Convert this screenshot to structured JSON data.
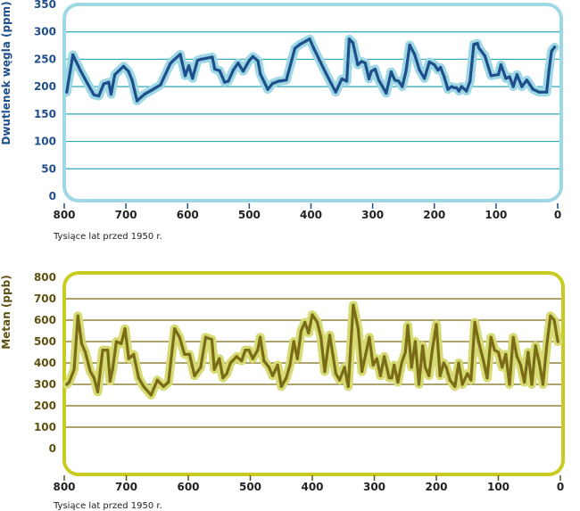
{
  "chart_data": [
    {
      "type": "line",
      "ylabel": "Dwutlenek węgla (ppm)",
      "xlabel": "Tysiące lat przed 1950 r.",
      "xlim": [
        800,
        0
      ],
      "ylim": [
        0,
        350
      ],
      "xticks": [
        "800",
        "700",
        "600",
        "500",
        "400",
        "300",
        "200",
        "100",
        "0"
      ],
      "yticks": [
        "0",
        "50",
        "100",
        "150",
        "200",
        "250",
        "300",
        "350"
      ],
      "grid": true,
      "colors": {
        "line": "#1f4e8c",
        "halo": "#9dd8e4",
        "frame": "#9dd8e4",
        "grid": "#2aa9b8",
        "axis": "#1f4e8c",
        "text": "#1f4e8c",
        "xtitle": "#222222"
      },
      "series": [
        {
          "x": [
            796,
            786,
            774,
            762,
            752,
            744,
            736,
            728,
            724,
            718,
            704,
            696,
            690,
            682,
            670,
            656,
            644,
            628,
            624,
            612,
            604,
            598,
            592,
            584,
            578,
            560,
            556,
            548,
            540,
            534,
            526,
            518,
            510,
            504,
            500,
            494,
            486,
            482,
            470,
            462,
            452,
            440,
            426,
            418,
            402,
            396,
            386,
            376,
            360,
            350,
            342,
            338,
            332,
            324,
            318,
            312,
            306,
            302,
            296,
            290,
            284,
            278,
            270,
            264,
            258,
            252,
            246,
            240,
            232,
            224,
            216,
            208,
            200,
            194,
            190,
            184,
            178,
            172,
            168,
            164,
            160,
            156,
            148,
            142,
            136,
            130,
            128,
            118,
            108,
            96,
            92,
            84,
            78,
            72,
            66,
            58,
            50,
            40,
            30,
            18,
            14,
            10,
            5
          ],
          "y": [
            190,
            258,
            230,
            205,
            185,
            183,
            205,
            208,
            186,
            222,
            237,
            228,
            212,
            174,
            186,
            195,
            203,
            242,
            247,
            259,
            220,
            238,
            215,
            248,
            250,
            254,
            232,
            229,
            208,
            210,
            230,
            243,
            228,
            240,
            248,
            255,
            247,
            223,
            195,
            206,
            210,
            212,
            270,
            277,
            287,
            271,
            248,
            225,
            190,
            214,
            210,
            287,
            280,
            240,
            246,
            243,
            214,
            228,
            232,
            212,
            200,
            188,
            227,
            212,
            210,
            200,
            228,
            276,
            259,
            230,
            215,
            245,
            240,
            230,
            235,
            218,
            195,
            200,
            198,
            198,
            192,
            200,
            192,
            210,
            277,
            279,
            271,
            256,
            220,
            222,
            240,
            215,
            218,
            200,
            222,
            200,
            212,
            195,
            190,
            190,
            230,
            265,
            272
          ]
        }
      ]
    },
    {
      "type": "line",
      "ylabel": "Metan (ppb)",
      "xlabel": "Tysiące lat przed 1950 r.",
      "xlim": [
        800,
        0
      ],
      "ylim": [
        0,
        800
      ],
      "xticks": [
        "800",
        "700",
        "600",
        "500",
        "400",
        "300",
        "200",
        "100",
        "0"
      ],
      "yticks": [
        "0",
        "100",
        "200",
        "300",
        "400",
        "500",
        "600",
        "700",
        "800"
      ],
      "grid": true,
      "colors": {
        "line": "#7a6b17",
        "halo": "#d7db74",
        "frame": "#c8cc20",
        "grid": "#7a6b17",
        "axis": "#5e5210",
        "text": "#5e5210",
        "xtitle": "#222222"
      },
      "series": [
        {
          "x": [
            796,
            792,
            784,
            778,
            772,
            766,
            758,
            752,
            746,
            738,
            730,
            726,
            722,
            716,
            708,
            702,
            696,
            688,
            680,
            672,
            660,
            650,
            640,
            632,
            622,
            614,
            606,
            598,
            590,
            580,
            572,
            562,
            558,
            550,
            544,
            538,
            532,
            522,
            514,
            508,
            502,
            496,
            488,
            484,
            478,
            470,
            464,
            456,
            450,
            442,
            436,
            430,
            424,
            418,
            412,
            406,
            400,
            392,
            386,
            380,
            372,
            362,
            356,
            348,
            342,
            334,
            326,
            320,
            314,
            308,
            302,
            296,
            290,
            284,
            276,
            272,
            268,
            262,
            256,
            250,
            246,
            240,
            234,
            228,
            222,
            218,
            212,
            206,
            200,
            194,
            188,
            184,
            178,
            170,
            164,
            158,
            150,
            144,
            138,
            132,
            124,
            118,
            112,
            106,
            100,
            94,
            88,
            82,
            76,
            70,
            64,
            58,
            52,
            46,
            40,
            34,
            28,
            22,
            16,
            10,
            4
          ],
          "y": [
            300,
            310,
            370,
            620,
            490,
            450,
            360,
            330,
            265,
            460,
            460,
            315,
            370,
            500,
            490,
            560,
            420,
            440,
            330,
            290,
            250,
            320,
            290,
            310,
            560,
            520,
            440,
            440,
            340,
            380,
            520,
            510,
            370,
            420,
            330,
            350,
            400,
            430,
            410,
            460,
            460,
            420,
            460,
            520,
            410,
            380,
            340,
            390,
            290,
            330,
            390,
            500,
            420,
            550,
            590,
            540,
            625,
            590,
            520,
            360,
            530,
            350,
            320,
            380,
            290,
            670,
            560,
            360,
            440,
            520,
            390,
            420,
            340,
            430,
            330,
            330,
            390,
            310,
            400,
            450,
            575,
            380,
            500,
            300,
            480,
            380,
            340,
            470,
            580,
            340,
            400,
            380,
            320,
            290,
            400,
            300,
            350,
            320,
            590,
            500,
            410,
            330,
            520,
            460,
            450,
            380,
            440,
            300,
            520,
            430,
            390,
            310,
            450,
            300,
            480,
            400,
            300,
            480,
            620,
            600,
            500
          ]
        }
      ]
    }
  ]
}
